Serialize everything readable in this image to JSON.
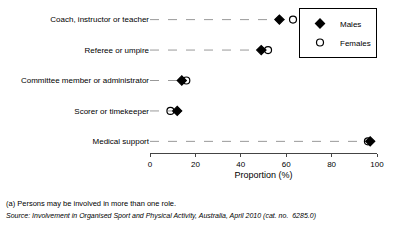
{
  "chart_data": {
    "type": "scatter",
    "orientation": "horizontal",
    "categories": [
      "Coach, instructor or teacher",
      "Referee or umpire",
      "Committee member or administrator",
      "Scorer or timekeeper",
      "Medical support"
    ],
    "series": [
      {
        "name": "Males",
        "color": "#000000",
        "marker": "diamond",
        "values": [
          57,
          49,
          14,
          12,
          97
        ]
      },
      {
        "name": "Females",
        "color": "#000000",
        "marker": "circle-open",
        "values": [
          63,
          52,
          16,
          9,
          96
        ]
      }
    ],
    "xlabel": "Proportion (%)",
    "xlim": [
      0,
      100
    ],
    "xticks": [
      0,
      20,
      40,
      60,
      80,
      100
    ],
    "grid": false,
    "legend": "upper right",
    "annotations": [
      "(a) Persons may be involved in more than one role.",
      "Source: Involvement in Organised Sport and Physical Activity, Australia, April 2010 (cat. no.  6285.0)"
    ]
  }
}
